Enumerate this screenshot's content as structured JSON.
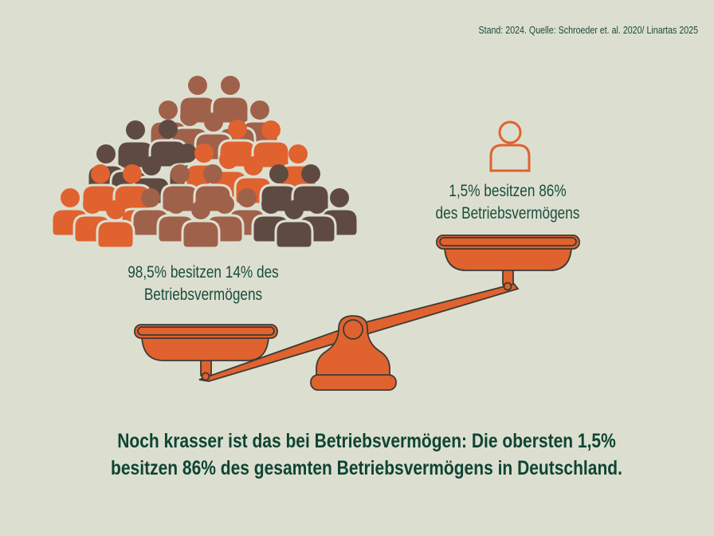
{
  "source_note": "Stand: 2024. Quelle: Schroeder et. al. 2020/ Linartas 2025",
  "top_group": {
    "line1": "1,5% besitzen 86%",
    "line2": "des Betriebsvermögens",
    "icon": "single-person-outline-icon"
  },
  "bottom_group": {
    "line1": "98,5% besitzen 14% des",
    "line2": "Betriebsvermögens",
    "icon": "crowd-icon"
  },
  "headline": {
    "line1": "Noch krasser ist das bei Betriebsvermögen: Die obersten 1,5%",
    "line2": "besitzen 86% des gesamten Betriebsvermögens in Deutschland."
  },
  "colors": {
    "background": "#dcdfd0",
    "orange": "#e0622f",
    "brown": "#a0614a",
    "dark_brown": "#5f4a42",
    "text_green": "#174a3a"
  }
}
